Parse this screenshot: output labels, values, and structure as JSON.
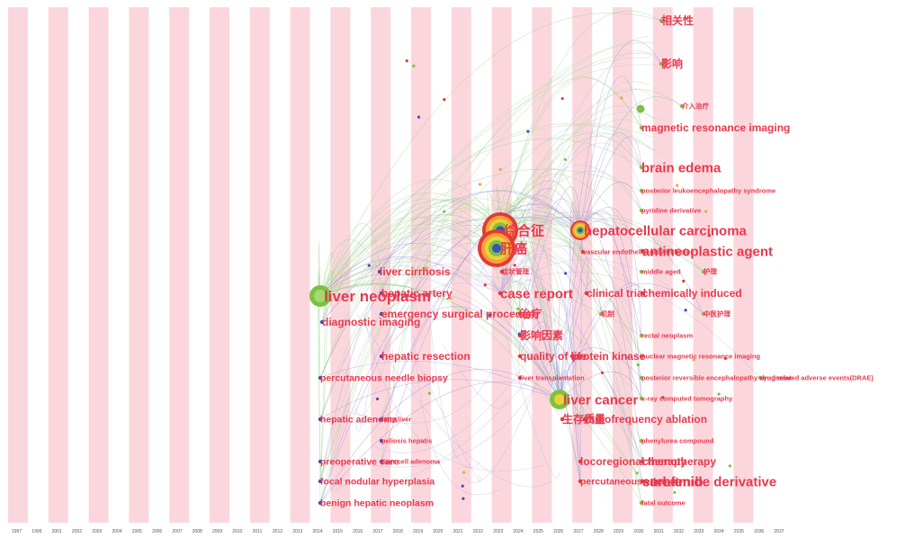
{
  "colors": {
    "stripe": "#fbd7dd",
    "label": "#e8394e",
    "link_green": "#9bd18b",
    "link_purple": "#9a8fd6",
    "node_red": "#e53935",
    "node_green": "#7cc242",
    "node_blue": "#3f51b5",
    "node_orange": "#f4a23c",
    "node_yellow": "#e8d33a"
  },
  "timeline": {
    "years": [
      "1997",
      "1999",
      "2001",
      "2002",
      "2003",
      "2004",
      "2005",
      "2006",
      "2007",
      "2008",
      "2009",
      "2010",
      "2011",
      "2012",
      "2013",
      "2014",
      "2015",
      "2016",
      "2017",
      "2018",
      "2019",
      "2020",
      "2021",
      "2022",
      "2023",
      "2024",
      "2025",
      "2026",
      "2027",
      "2028",
      "2029",
      "2030",
      "2031",
      "2032",
      "2033",
      "2034",
      "2035",
      "2036",
      "2037"
    ]
  },
  "keywords": [
    {
      "id": "liver_neoplasm",
      "label": "liver neoplasm",
      "size": "xl",
      "cluster": "0",
      "node": "green-big"
    },
    {
      "id": "liver_cirrhosis",
      "label": "liver cirrhosis",
      "size": "m",
      "cluster": "0"
    },
    {
      "id": "hepatic_artery",
      "label": "hepatic artery",
      "size": "m",
      "cluster": "0"
    },
    {
      "id": "emergency_surgical",
      "label": "emergency surgical procedure",
      "size": "m",
      "cluster": "0"
    },
    {
      "id": "diagnostic_imaging",
      "label": "diagnostic imaging",
      "size": "m",
      "cluster": "0"
    },
    {
      "id": "hepatic_resection",
      "label": "hepatic resection",
      "size": "m",
      "cluster": "0"
    },
    {
      "id": "percutaneous_biopsy",
      "label": "percutaneous needle biopsy",
      "size": "s",
      "cluster": "0"
    },
    {
      "id": "hepatic_adenoma",
      "label": "hepatic adenoma",
      "size": "s",
      "cluster": "0"
    },
    {
      "id": "fatty_liver",
      "label": "fatty liver",
      "size": "xs",
      "cluster": "0"
    },
    {
      "id": "peliosis_hepatis",
      "label": "peliosis hepatis",
      "size": "xs",
      "cluster": "0"
    },
    {
      "id": "preoperative",
      "label": "preoperative care",
      "size": "s",
      "cluster": "0"
    },
    {
      "id": "cell_adenoma",
      "label": "liver cell adenoma",
      "size": "xs",
      "cluster": "0"
    },
    {
      "id": "focal_nodular",
      "label": "focal nodular hyperplasia",
      "size": "s",
      "cluster": "0"
    },
    {
      "id": "benign_hepatic",
      "label": "benign hepatic neoplasm",
      "size": "s",
      "cluster": "0"
    },
    {
      "id": "syndrome_cn",
      "label": "综合征",
      "size": "l",
      "cluster": "1",
      "node": "ring-big"
    },
    {
      "id": "liver_cancer_cn",
      "label": "肝癌",
      "size": "l",
      "cluster": "1",
      "node": "ring-big2"
    },
    {
      "id": "case_report",
      "label": "case report",
      "size": "l",
      "cluster": "1"
    },
    {
      "id": "treatment_cn",
      "label": "治疗",
      "size": "m",
      "cluster": "1"
    },
    {
      "id": "influence_factor_cn",
      "label": "影响因素",
      "size": "m",
      "cluster": "1"
    },
    {
      "id": "quality_life",
      "label": "quality of life",
      "size": "m",
      "cluster": "1"
    },
    {
      "id": "protein_kinase",
      "label": "protein kinase",
      "size": "m",
      "cluster": "1"
    },
    {
      "id": "liver_transplant",
      "label": "liver transplantation",
      "size": "xs",
      "cluster": "1"
    },
    {
      "id": "symptom_mgmt_cn",
      "label": "症状管理",
      "size": "xs",
      "cluster": "1"
    },
    {
      "id": "liver_cancer",
      "label": "liver cancer",
      "size": "l",
      "cluster": "2",
      "node": "green-mid"
    },
    {
      "id": "hcc",
      "label": "hepatocellular carcinoma",
      "size": "l",
      "cluster": "2",
      "node": "ring-mid"
    },
    {
      "id": "antineoplastic",
      "label": "antineoplastic agent",
      "size": "l",
      "cluster": "2"
    },
    {
      "id": "vascular_endo",
      "label": "vascular endothelial growth factor",
      "size": "xs",
      "cluster": "2"
    },
    {
      "id": "clinical_trial",
      "label": "clinical trial",
      "size": "m",
      "cluster": "2"
    },
    {
      "id": "chemically_induced",
      "label": "chemically induced",
      "size": "m",
      "cluster": "2"
    },
    {
      "id": "radiofreq",
      "label": "radiofrequency ablation",
      "size": "m",
      "cluster": "2"
    },
    {
      "id": "survival_cn",
      "label": "生存质量",
      "size": "m",
      "cluster": "2"
    },
    {
      "id": "locoregional",
      "label": "locoregional therapy",
      "size": "m",
      "cluster": "2"
    },
    {
      "id": "chemotherapy",
      "label": "chemotherapy",
      "size": "m",
      "cluster": "2"
    },
    {
      "id": "percutaneous_ethanol",
      "label": "percutaneous ethanol",
      "size": "s",
      "cluster": "2"
    },
    {
      "id": "carbamide",
      "label": "carbamide derivative",
      "size": "l",
      "cluster": "2"
    },
    {
      "id": "sorafenib",
      "label": "sorafenib",
      "size": "l",
      "cluster": "2"
    },
    {
      "id": "relevance_cn",
      "label": "相关性",
      "size": "m",
      "cluster": "3"
    },
    {
      "id": "impact_cn",
      "label": "影响",
      "size": "m",
      "cluster": "3"
    },
    {
      "id": "intervention_cn",
      "label": "介入治疗",
      "size": "xs",
      "cluster": "3"
    },
    {
      "id": "mri",
      "label": "magnetic resonance imaging",
      "size": "m",
      "cluster": "3"
    },
    {
      "id": "brain_edema",
      "label": "brain edema",
      "size": "l",
      "cluster": "3"
    },
    {
      "id": "pres",
      "label": "posterior leukoencephalopathy syndrome",
      "size": "xs",
      "cluster": "3"
    },
    {
      "id": "pyridine",
      "label": "pyridine derivative",
      "size": "xs",
      "cluster": "3"
    },
    {
      "id": "middle_aged",
      "label": "middle aged",
      "size": "xs",
      "cluster": "3"
    },
    {
      "id": "nursing_cn",
      "label": "护理",
      "size": "xs",
      "cluster": "3"
    },
    {
      "id": "mechanism_cn",
      "label": "机制",
      "size": "xs",
      "cluster": "3"
    },
    {
      "id": "mid_report_cn",
      "label": "中医护理",
      "size": "xs",
      "cluster": "3"
    },
    {
      "id": "rectal",
      "label": "rectal neoplasm",
      "size": "xs",
      "cluster": "3"
    },
    {
      "id": "nmr",
      "label": "nuclear magnetic resonance imaging",
      "size": "xs",
      "cluster": "3"
    },
    {
      "id": "pres2",
      "label": "posterior reversible encephalopathy syndrome",
      "size": "xs",
      "cluster": "3"
    },
    {
      "id": "adverse",
      "label": "drug related adverse events(DRAE)",
      "size": "xs",
      "cluster": "3"
    },
    {
      "id": "xray",
      "label": "x-ray computed tomography",
      "size": "xs",
      "cluster": "3"
    },
    {
      "id": "phenylurea",
      "label": "phenylurea compound",
      "size": "xs",
      "cluster": "3"
    },
    {
      "id": "fatal",
      "label": "fatal outcome",
      "size": "xs",
      "cluster": "3"
    }
  ]
}
